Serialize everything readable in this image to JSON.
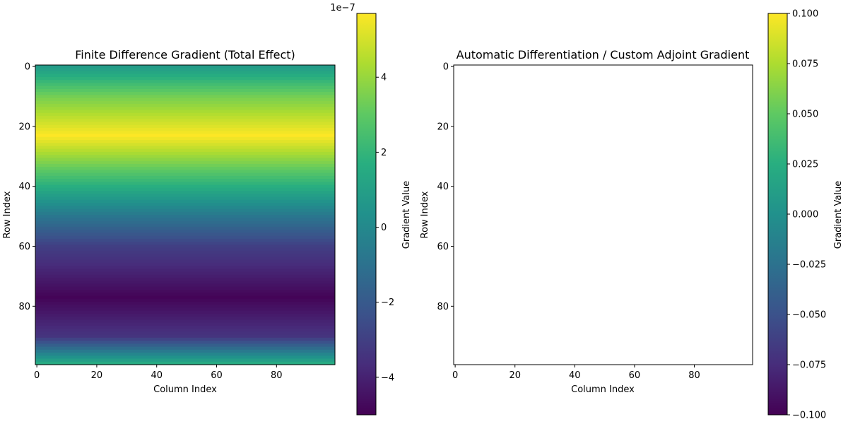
{
  "chart_data": [
    {
      "type": "heatmap",
      "title": "Finite Difference Gradient (Total Effect)",
      "xlabel": "Column Index",
      "ylabel": "Row Index",
      "rows": 100,
      "cols": 100,
      "xticks": [
        0,
        20,
        40,
        60,
        80
      ],
      "yticks": [
        0,
        20,
        40,
        60,
        80
      ],
      "row_profile": {
        "rows": [
          0,
          10,
          23,
          40,
          50,
          60,
          77,
          90,
          99
        ],
        "values": [
          8e-08,
          3.4e-07,
          5.7e-07,
          1.7e-07,
          -8e-08,
          -3e-07,
          -4.9e-07,
          -3.4e-07,
          1.5e-07
        ]
      },
      "colorbar": {
        "label": "Gradient Value",
        "min": -5e-07,
        "max": 5.7e-07,
        "ticks": [
          -4,
          -2,
          0,
          2,
          4
        ],
        "offset_text": "1e−7",
        "colormap": "viridis"
      }
    },
    {
      "type": "heatmap",
      "title": "Automatic Differentiation / Custom Adjoint Gradient",
      "xlabel": "Column Index",
      "ylabel": "Row Index",
      "rows": 100,
      "cols": 100,
      "xticks": [
        0,
        20,
        40,
        60,
        80
      ],
      "yticks": [
        0,
        20,
        40,
        60,
        80
      ],
      "empty": true,
      "colorbar": {
        "label": "Gradient Value",
        "min": -0.1,
        "max": 0.1,
        "ticks": [
          "−0.100",
          "−0.075",
          "−0.050",
          "−0.025",
          "0.000",
          "0.025",
          "0.050",
          "0.075",
          "0.100"
        ],
        "colormap": "viridis"
      }
    }
  ]
}
